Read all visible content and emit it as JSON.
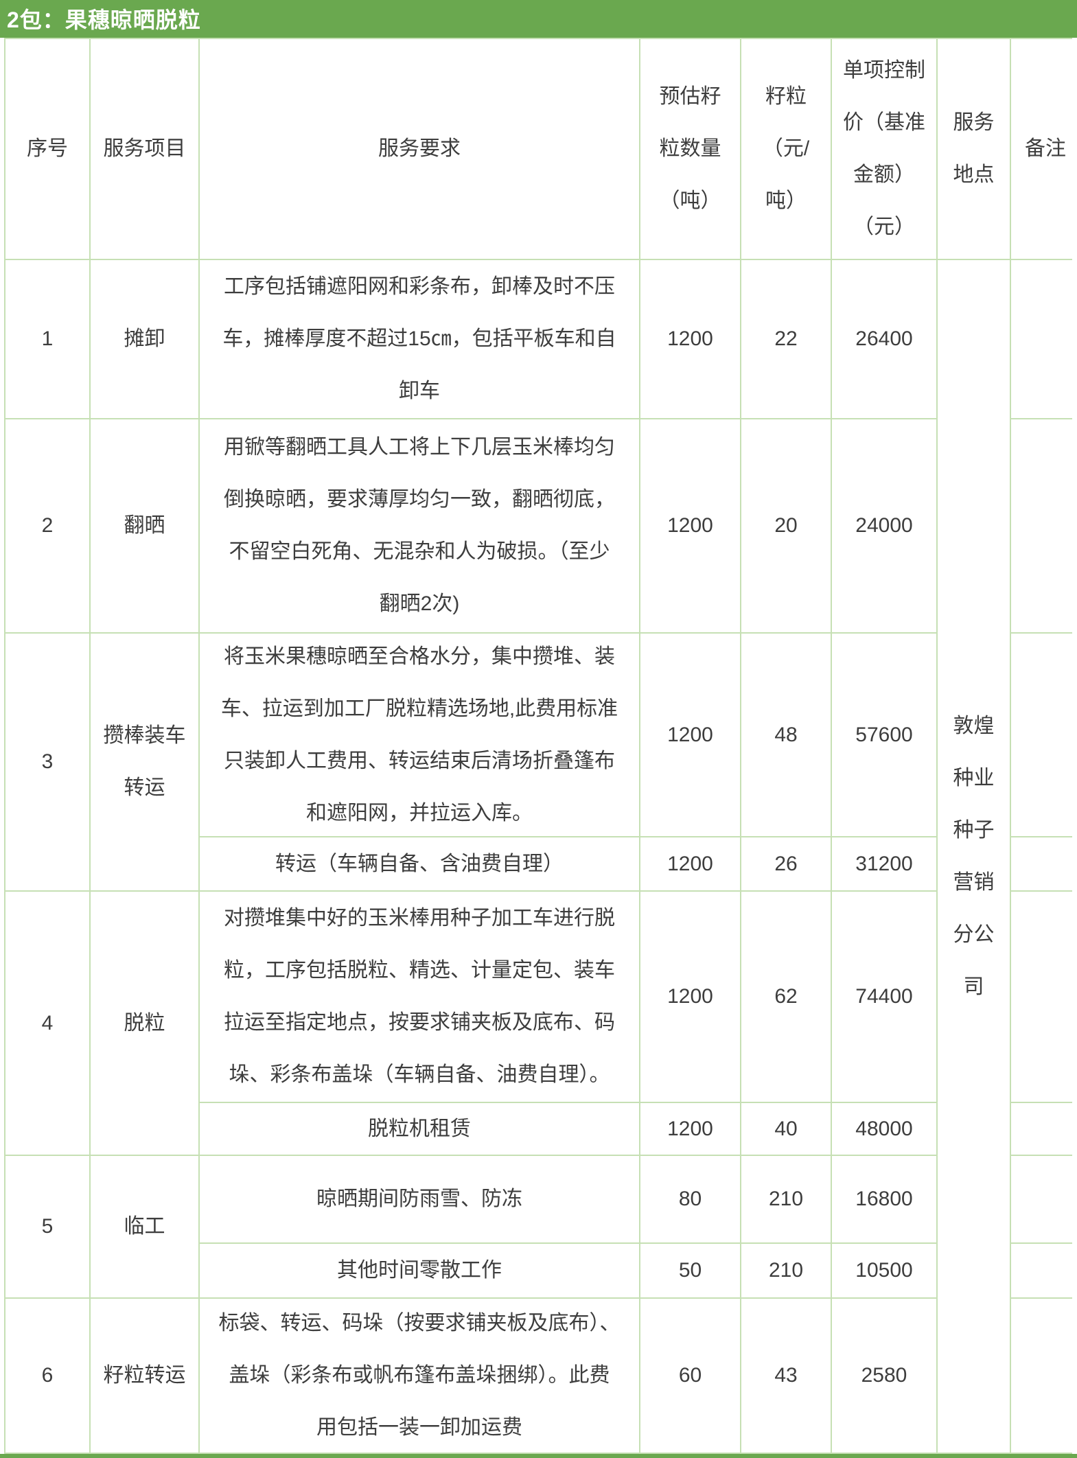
{
  "title": "2包：果穗晾晒脱粒",
  "colors": {
    "header_green": "#6AA84F",
    "grid_line_green": "#C6E0B4",
    "text": "#3d3d3d",
    "title_text": "#ffffff"
  },
  "table": {
    "columns": [
      "序号",
      "服务项目",
      "服务要求",
      "预估籽\n粒数量\n（吨）",
      "籽粒\n（元/\n吨）",
      "单项控制\n价（基准\n金额）\n（元）",
      "服务\n地点",
      "备注"
    ],
    "service_location": "敦煌\n种业\n种子\n营销\n分公\n司",
    "remark_placeholder": "",
    "groups": [
      {
        "no": "1",
        "item": "摊卸",
        "rows": [
          {
            "req": "工序包括铺遮阳网和彩条布，卸棒及时不压\n车，摊棒厚度不超过15㎝，包括平板车和自\n卸车",
            "qty": "1200",
            "unit_price": "22",
            "total": "26400"
          }
        ]
      },
      {
        "no": "2",
        "item": "翻晒",
        "rows": [
          {
            "req": "用锨等翻晒工具人工将上下几层玉米棒均匀\n倒换晾晒，要求薄厚均匀一致，翻晒彻底，\n不留空白死角、无混杂和人为破损。（至少\n翻晒2次)",
            "qty": "1200",
            "unit_price": "20",
            "total": "24000"
          }
        ]
      },
      {
        "no": "3",
        "item": "攒棒装车\n转运",
        "rows": [
          {
            "req": "将玉米果穗晾晒至合格水分，集中攒堆、装\n车、拉运到加工厂脱粒精选场地,此费用标准\n只装卸人工费用、转运结束后清场折叠篷布\n和遮阳网，并拉运入库。",
            "qty": "1200",
            "unit_price": "48",
            "total": "57600"
          },
          {
            "req": "转运（车辆自备、含油费自理）",
            "qty": "1200",
            "unit_price": "26",
            "total": "31200"
          }
        ]
      },
      {
        "no": "4",
        "item": "脱粒",
        "rows": [
          {
            "req": "对攒堆集中好的玉米棒用种子加工车进行脱\n粒，工序包括脱粒、精选、计量定包、装车\n拉运至指定地点，按要求铺夹板及底布、码\n垛、彩条布盖垛（车辆自备、油费自理）。",
            "qty": "1200",
            "unit_price": "62",
            "total": "74400"
          },
          {
            "req": "脱粒机租赁",
            "qty": "1200",
            "unit_price": "40",
            "total": "48000"
          }
        ]
      },
      {
        "no": "5",
        "item": "临工",
        "rows": [
          {
            "req": "晾晒期间防雨雪、防冻",
            "qty": "80",
            "unit_price": "210",
            "total": "16800"
          },
          {
            "req": "其他时间零散工作",
            "qty": "50",
            "unit_price": "210",
            "total": "10500"
          }
        ]
      },
      {
        "no": "6",
        "item": "籽粒转运",
        "rows": [
          {
            "req": "标袋、转运、码垛（按要求铺夹板及底布）、\n盖垛（彩条布或帆布篷布盖垛捆绑）。此费\n用包括一装一卸加运费",
            "qty": "60",
            "unit_price": "43",
            "total": "2580"
          }
        ]
      }
    ]
  }
}
